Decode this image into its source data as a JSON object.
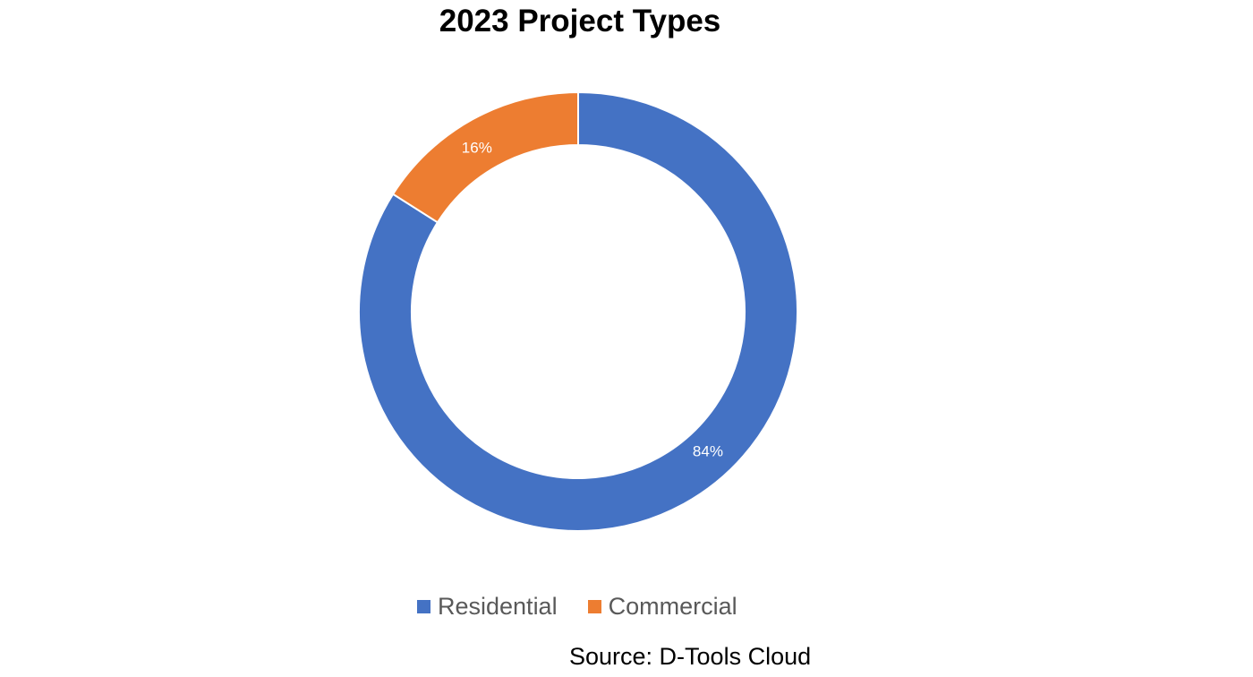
{
  "chart_data": {
    "type": "pie",
    "variant": "donut",
    "title": "2023 Project Types",
    "categories": [
      "Residential",
      "Commercial"
    ],
    "values": [
      84,
      16
    ],
    "value_labels": [
      "84%",
      "16%"
    ],
    "colors": [
      "#4472C4",
      "#ED7D31"
    ],
    "legend": {
      "placement": "bottom",
      "entries": [
        {
          "label": "Residential",
          "color": "#4472C4"
        },
        {
          "label": "Commercial",
          "color": "#ED7D31"
        }
      ]
    }
  },
  "source_note": "Source: D-Tools Cloud"
}
